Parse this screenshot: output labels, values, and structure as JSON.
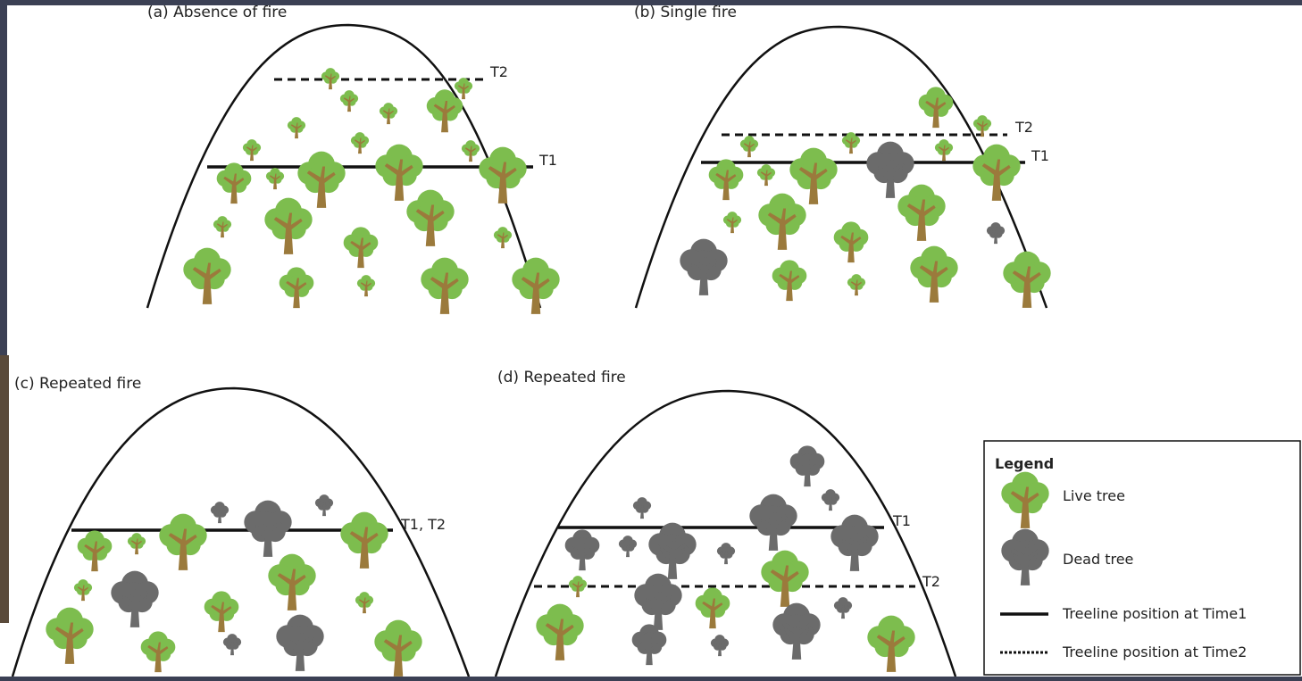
{
  "colors": {
    "background_frame": "#3b4054",
    "panel": "#ffffff",
    "live_tree_canopy": "#7dbd4e",
    "live_tree_trunk": "#9b7a3c",
    "dead_tree": "#6b6b6b",
    "line": "#111111"
  },
  "panels": {
    "a": {
      "label": "(a) Absence of fire",
      "line_labels": {
        "t1": "T1",
        "t2": "T2"
      }
    },
    "b": {
      "label": "(b) Single fire",
      "line_labels": {
        "t1": "T1",
        "t2": "T2"
      }
    },
    "c": {
      "label": "(c) Repeated fire",
      "line_labels": {
        "t1t2": "T1, T2"
      }
    },
    "d": {
      "label": "(d) Repeated fire",
      "line_labels": {
        "t1": "T1",
        "t2": "T2"
      }
    }
  },
  "legend": {
    "title": "Legend",
    "items": [
      {
        "label": "Live tree",
        "icon": "live-tree-icon"
      },
      {
        "label": "Dead tree",
        "icon": "dead-tree-icon"
      },
      {
        "label": "Treeline position at Time1",
        "icon": "solid-line-icon"
      },
      {
        "label": "Treeline position at Time2",
        "icon": "dashed-line-icon"
      }
    ]
  }
}
